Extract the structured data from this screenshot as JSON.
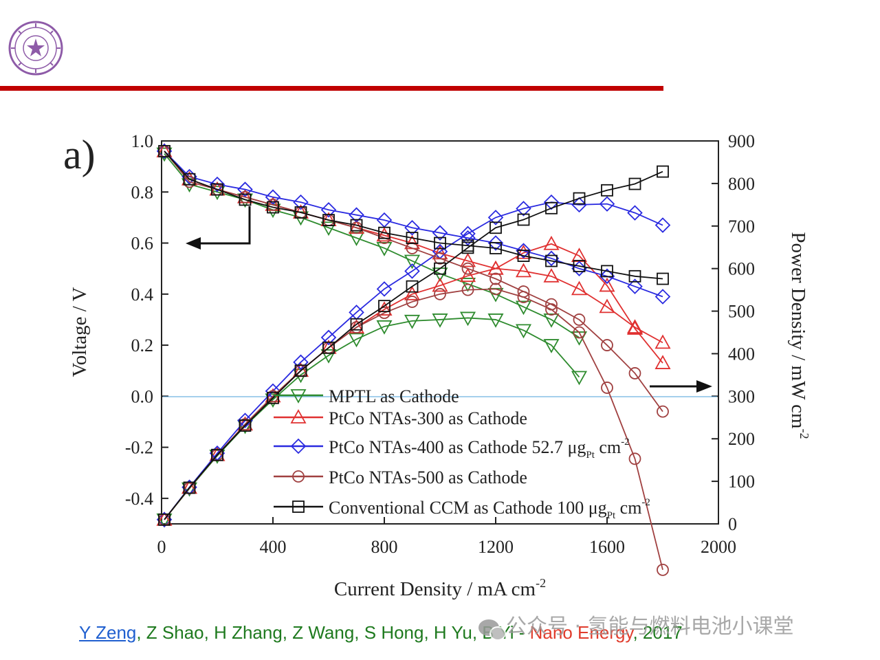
{
  "colors": {
    "header_rule": "#c00000",
    "logo": "#8e5ba8",
    "citation_author_link": "#1f5fcf",
    "citation_authors": "#1f7a1f",
    "citation_journal": "#e03c2c"
  },
  "logo": {
    "icon": "university-seal-icon"
  },
  "citation": {
    "first_author": "Y Zeng",
    "authors": ", Z Shao, H Zhang, Z Wang, S Hong, H Yu, B Yi",
    "dash": " - ",
    "journal": "Nano Energy",
    "year": ", 2017"
  },
  "watermark": {
    "icon": "wechat-icon",
    "text": "公众号 · 氢能与燃料电池小课堂"
  },
  "chart_data": {
    "type": "line",
    "panel_label": "a)",
    "xlabel": "Current Density / mA cm",
    "xlabel_sup": "-2",
    "ylabel_left": "Voltage / V",
    "ylabel_right": "Power Density / mW cm",
    "ylabel_right_sup": "-2",
    "xlim": [
      0,
      2000
    ],
    "ylim_left": [
      -0.5,
      1.0
    ],
    "ylim_right": [
      0,
      900
    ],
    "xticks": [
      "0",
      "400",
      "800",
      "1200",
      "1600",
      "2000"
    ],
    "yticks_left": [
      "1.0",
      "0.8",
      "0.6",
      "0.4",
      "0.2",
      "0.0",
      "-0.2",
      "-0.4"
    ],
    "yticks_right": [
      "900",
      "800",
      "700",
      "600",
      "500",
      "400",
      "300",
      "200",
      "100",
      "0"
    ],
    "grid": false,
    "legend_position": "lower-center",
    "annotations": [
      "arrow pointing left to voltage axis",
      "arrow pointing right to power density axis"
    ],
    "x": [
      10,
      100,
      200,
      300,
      400,
      500,
      600,
      700,
      800,
      900,
      1000,
      1100,
      1200,
      1300,
      1400,
      1500,
      1600,
      1700,
      1800
    ],
    "series": [
      {
        "name": "MPTL as Cathode",
        "color": "#2e8b2e",
        "marker": "triangle-down",
        "voltage": [
          0.95,
          0.83,
          0.8,
          0.77,
          0.73,
          0.7,
          0.66,
          0.62,
          0.58,
          0.53,
          0.48,
          0.44,
          0.4,
          0.35,
          0.3,
          0.23,
          null,
          null,
          null
        ],
        "power": [
          10,
          83,
          160,
          230,
          292,
          350,
          396,
          434,
          464,
          477,
          480,
          484,
          480,
          455,
          420,
          345,
          null,
          null,
          null
        ]
      },
      {
        "name": "PtCo NTAs-300 as Cathode",
        "color": "#e03030",
        "marker": "triangle-up",
        "voltage": [
          0.96,
          0.85,
          0.81,
          0.78,
          0.75,
          0.72,
          0.69,
          0.66,
          0.63,
          0.6,
          0.56,
          0.53,
          0.5,
          0.49,
          0.47,
          0.42,
          0.35,
          0.27,
          0.21
        ],
        "power": [
          10,
          85,
          162,
          234,
          300,
          360,
          414,
          462,
          504,
          540,
          560,
          583,
          600,
          637,
          658,
          630,
          560,
          459,
          378
        ]
      },
      {
        "name": "PtCo NTAs-400 as Cathode 52.7 μg",
        "name_sub": "Pt",
        "name_tail": " cm",
        "name_sup": "-2",
        "color": "#2a2ae0",
        "marker": "diamond",
        "voltage": [
          0.96,
          0.86,
          0.83,
          0.81,
          0.78,
          0.76,
          0.73,
          0.71,
          0.69,
          0.66,
          0.64,
          0.62,
          0.6,
          0.57,
          0.54,
          0.5,
          0.47,
          0.43,
          0.39
        ],
        "power": [
          10,
          86,
          166,
          243,
          312,
          380,
          438,
          497,
          552,
          594,
          640,
          682,
          720,
          741,
          756,
          750,
          752,
          731,
          702
        ]
      },
      {
        "name": "PtCo NTAs-500 as Cathode",
        "color": "#a04040",
        "marker": "circle",
        "voltage": [
          0.96,
          0.84,
          0.81,
          0.78,
          0.75,
          0.72,
          0.69,
          0.66,
          0.62,
          0.58,
          0.54,
          0.5,
          0.46,
          0.41,
          0.36,
          0.3,
          0.2,
          0.09,
          -0.06
        ],
        "power": [
          10,
          84,
          162,
          234,
          300,
          360,
          414,
          462,
          496,
          522,
          540,
          550,
          552,
          533,
          504,
          450,
          320,
          153,
          -108
        ]
      },
      {
        "name": "Conventional CCM as Cathode 100 μg",
        "name_sub": "Pt",
        "name_tail": " cm",
        "name_sup": "-2",
        "color": "#111111",
        "marker": "square",
        "voltage": [
          0.96,
          0.85,
          0.81,
          0.77,
          0.74,
          0.72,
          0.69,
          0.67,
          0.64,
          0.62,
          0.6,
          0.59,
          0.58,
          0.55,
          0.53,
          0.51,
          0.49,
          0.47,
          0.46
        ],
        "power": [
          10,
          85,
          162,
          231,
          296,
          360,
          414,
          469,
          512,
          558,
          600,
          649,
          696,
          715,
          742,
          765,
          784,
          799,
          828
        ]
      }
    ]
  }
}
